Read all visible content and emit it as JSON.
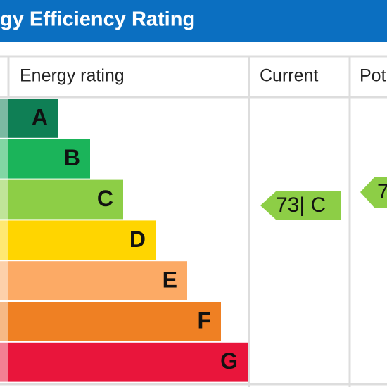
{
  "header": {
    "title": "gy Efficiency Rating",
    "color": "#0b6fc1"
  },
  "table": {
    "headers": [
      "Energy rating",
      "Current",
      "Pot"
    ],
    "bands": [
      {
        "letter": "A",
        "color": "#0f7f55"
      },
      {
        "letter": "B",
        "color": "#1bb45a"
      },
      {
        "letter": "C",
        "color": "#8dce46"
      },
      {
        "letter": "D",
        "color": "#ffd500"
      },
      {
        "letter": "E",
        "color": "#fcaa65"
      },
      {
        "letter": "F",
        "color": "#ef8023"
      },
      {
        "letter": "G",
        "color": "#e9153b"
      }
    ],
    "current": {
      "label": "73| C",
      "color": "#8dce46"
    },
    "potential": {
      "label": "7",
      "color": "#8dce46"
    }
  }
}
